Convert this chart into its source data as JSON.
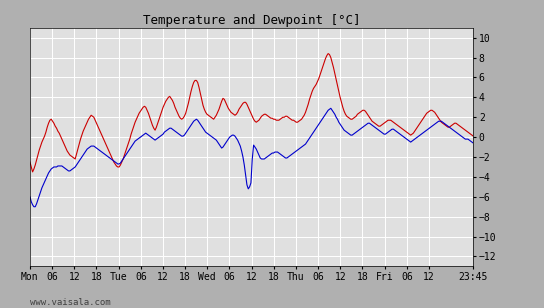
{
  "title": "Temperature and Dewpoint [°C]",
  "ylabel_right_ticks": [
    10,
    8,
    6,
    4,
    2,
    0,
    -2,
    -4,
    -6,
    -8,
    -10,
    -12
  ],
  "ylim": [
    -13,
    11
  ],
  "xlim": [
    0,
    340
  ],
  "x_tick_labels": [
    "Mon",
    "06",
    "12",
    "18",
    "Tue",
    "06",
    "12",
    "18",
    "Wed",
    "06",
    "12",
    "18",
    "Thu",
    "06",
    "12",
    "18",
    "Fri",
    "06",
    "12",
    "23:45"
  ],
  "x_tick_positions": [
    0,
    17,
    34,
    51,
    68,
    85,
    102,
    119,
    136,
    153,
    170,
    187,
    204,
    221,
    238,
    255,
    272,
    289,
    306,
    340
  ],
  "outer_bg_color": "#b0b0b0",
  "plot_bg_color": "#e0e0e0",
  "grid_color": "#ffffff",
  "temp_color": "#cc0000",
  "dewp_color": "#0000cc",
  "watermark": "www.vaisala.com",
  "watermark_color": "#404040",
  "line_width": 0.8,
  "temp_data": [
    -2.5,
    -3.0,
    -3.5,
    -3.2,
    -2.8,
    -2.3,
    -1.8,
    -1.3,
    -0.9,
    -0.5,
    -0.2,
    0.1,
    0.5,
    1.0,
    1.4,
    1.7,
    1.8,
    1.6,
    1.4,
    1.1,
    0.9,
    0.6,
    0.4,
    0.1,
    -0.2,
    -0.5,
    -0.8,
    -1.1,
    -1.4,
    -1.6,
    -1.8,
    -1.9,
    -2.0,
    -2.1,
    -2.2,
    -1.7,
    -1.2,
    -0.7,
    -0.2,
    0.2,
    0.6,
    0.9,
    1.2,
    1.5,
    1.8,
    2.0,
    2.2,
    2.1,
    2.0,
    1.7,
    1.4,
    1.1,
    0.8,
    0.5,
    0.2,
    -0.1,
    -0.4,
    -0.7,
    -1.0,
    -1.3,
    -1.6,
    -1.9,
    -2.2,
    -2.5,
    -2.7,
    -2.9,
    -3.0,
    -3.0,
    -2.8,
    -2.5,
    -2.2,
    -1.8,
    -1.4,
    -1.0,
    -0.6,
    -0.2,
    0.3,
    0.7,
    1.1,
    1.5,
    1.8,
    2.1,
    2.4,
    2.6,
    2.8,
    3.0,
    3.1,
    3.0,
    2.7,
    2.4,
    2.0,
    1.6,
    1.2,
    0.9,
    0.7,
    1.0,
    1.4,
    1.8,
    2.2,
    2.6,
    3.0,
    3.3,
    3.6,
    3.8,
    4.0,
    4.1,
    3.9,
    3.7,
    3.4,
    3.0,
    2.7,
    2.4,
    2.1,
    1.9,
    1.8,
    1.9,
    2.1,
    2.4,
    2.9,
    3.4,
    4.0,
    4.6,
    5.1,
    5.5,
    5.7,
    5.7,
    5.5,
    5.0,
    4.4,
    3.8,
    3.2,
    2.8,
    2.5,
    2.3,
    2.2,
    2.1,
    2.0,
    1.9,
    1.8,
    2.0,
    2.2,
    2.5,
    2.8,
    3.2,
    3.6,
    3.9,
    3.8,
    3.5,
    3.2,
    2.9,
    2.7,
    2.5,
    2.4,
    2.3,
    2.2,
    2.3,
    2.5,
    2.8,
    3.0,
    3.2,
    3.4,
    3.5,
    3.5,
    3.3,
    3.0,
    2.7,
    2.4,
    2.1,
    1.8,
    1.6,
    1.5,
    1.6,
    1.7,
    1.9,
    2.1,
    2.2,
    2.3,
    2.3,
    2.2,
    2.1,
    2.0,
    1.9,
    1.9,
    1.8,
    1.8,
    1.7,
    1.7,
    1.7,
    1.8,
    1.9,
    2.0,
    2.0,
    2.1,
    2.1,
    2.0,
    1.9,
    1.8,
    1.7,
    1.7,
    1.6,
    1.5,
    1.5,
    1.6,
    1.7,
    1.8,
    2.0,
    2.2,
    2.5,
    2.9,
    3.3,
    3.8,
    4.2,
    4.6,
    4.9,
    5.1,
    5.3,
    5.6,
    5.9,
    6.3,
    6.7,
    7.1,
    7.5,
    7.9,
    8.2,
    8.4,
    8.3,
    8.0,
    7.5,
    7.0,
    6.4,
    5.8,
    5.2,
    4.6,
    4.0,
    3.5,
    3.0,
    2.6,
    2.3,
    2.1,
    2.0,
    1.9,
    1.8,
    1.8,
    1.9,
    2.0,
    2.1,
    2.3,
    2.4,
    2.5,
    2.6,
    2.7,
    2.7,
    2.6,
    2.4,
    2.2,
    2.0,
    1.8,
    1.6,
    1.5,
    1.4,
    1.3,
    1.2,
    1.1,
    1.1,
    1.2,
    1.3,
    1.4,
    1.5,
    1.6,
    1.7,
    1.7,
    1.7,
    1.6,
    1.5,
    1.4,
    1.3,
    1.2,
    1.1,
    1.0,
    0.9,
    0.8,
    0.7,
    0.6,
    0.5,
    0.4,
    0.3,
    0.2,
    0.3,
    0.4,
    0.6,
    0.8,
    1.0,
    1.2,
    1.4,
    1.6,
    1.8,
    2.0,
    2.2,
    2.4,
    2.5,
    2.6,
    2.7,
    2.7,
    2.6,
    2.5,
    2.3,
    2.1,
    1.9,
    1.7,
    1.5,
    1.4,
    1.3,
    1.2,
    1.1,
    1.0,
    1.0,
    1.1,
    1.2,
    1.3,
    1.4,
    1.4,
    1.3,
    1.2,
    1.1,
    1.0,
    0.9,
    0.8,
    0.7,
    0.6,
    0.5,
    0.4,
    0.3,
    0.2,
    0.1
  ],
  "dewp_data": [
    -6.0,
    -6.5,
    -6.8,
    -7.0,
    -7.0,
    -6.7,
    -6.3,
    -5.9,
    -5.5,
    -5.1,
    -4.8,
    -4.5,
    -4.2,
    -3.9,
    -3.6,
    -3.4,
    -3.2,
    -3.1,
    -3.0,
    -3.0,
    -3.0,
    -2.9,
    -2.9,
    -2.9,
    -2.9,
    -3.0,
    -3.1,
    -3.2,
    -3.3,
    -3.4,
    -3.4,
    -3.3,
    -3.2,
    -3.1,
    -3.0,
    -2.8,
    -2.6,
    -2.4,
    -2.2,
    -2.0,
    -1.8,
    -1.6,
    -1.4,
    -1.2,
    -1.1,
    -1.0,
    -0.9,
    -0.9,
    -0.9,
    -1.0,
    -1.1,
    -1.2,
    -1.3,
    -1.4,
    -1.5,
    -1.6,
    -1.7,
    -1.8,
    -1.9,
    -2.0,
    -2.1,
    -2.2,
    -2.3,
    -2.4,
    -2.5,
    -2.6,
    -2.7,
    -2.7,
    -2.6,
    -2.4,
    -2.2,
    -2.0,
    -1.8,
    -1.6,
    -1.4,
    -1.2,
    -1.0,
    -0.8,
    -0.6,
    -0.4,
    -0.3,
    -0.2,
    -0.1,
    0.0,
    0.1,
    0.2,
    0.3,
    0.4,
    0.3,
    0.2,
    0.1,
    0.0,
    -0.1,
    -0.2,
    -0.3,
    -0.2,
    -0.1,
    0.0,
    0.1,
    0.2,
    0.3,
    0.5,
    0.6,
    0.7,
    0.8,
    0.9,
    0.9,
    0.8,
    0.7,
    0.6,
    0.5,
    0.4,
    0.3,
    0.2,
    0.1,
    0.1,
    0.2,
    0.4,
    0.6,
    0.8,
    1.0,
    1.2,
    1.4,
    1.6,
    1.7,
    1.8,
    1.7,
    1.5,
    1.3,
    1.1,
    0.9,
    0.7,
    0.5,
    0.4,
    0.3,
    0.2,
    0.1,
    0.0,
    -0.1,
    -0.2,
    -0.3,
    -0.5,
    -0.7,
    -0.9,
    -1.1,
    -1.0,
    -0.8,
    -0.6,
    -0.4,
    -0.2,
    0.0,
    0.1,
    0.2,
    0.2,
    0.1,
    -0.1,
    -0.3,
    -0.6,
    -0.9,
    -1.4,
    -2.0,
    -2.8,
    -3.8,
    -4.8,
    -5.2,
    -5.0,
    -4.6,
    -2.2,
    -0.8,
    -1.0,
    -1.2,
    -1.5,
    -1.8,
    -2.1,
    -2.2,
    -2.2,
    -2.2,
    -2.1,
    -2.0,
    -1.9,
    -1.8,
    -1.7,
    -1.6,
    -1.6,
    -1.5,
    -1.5,
    -1.5,
    -1.6,
    -1.7,
    -1.8,
    -1.9,
    -2.0,
    -2.1,
    -2.1,
    -2.0,
    -1.9,
    -1.8,
    -1.7,
    -1.6,
    -1.5,
    -1.4,
    -1.3,
    -1.2,
    -1.1,
    -1.0,
    -0.9,
    -0.8,
    -0.7,
    -0.5,
    -0.3,
    -0.1,
    0.1,
    0.3,
    0.5,
    0.7,
    0.9,
    1.1,
    1.3,
    1.5,
    1.7,
    1.9,
    2.1,
    2.3,
    2.5,
    2.7,
    2.8,
    2.9,
    2.7,
    2.5,
    2.3,
    2.0,
    1.8,
    1.5,
    1.3,
    1.1,
    0.9,
    0.7,
    0.6,
    0.5,
    0.4,
    0.3,
    0.2,
    0.2,
    0.3,
    0.4,
    0.5,
    0.6,
    0.7,
    0.8,
    0.9,
    1.0,
    1.1,
    1.2,
    1.3,
    1.4,
    1.4,
    1.3,
    1.2,
    1.1,
    1.0,
    0.9,
    0.8,
    0.7,
    0.6,
    0.5,
    0.4,
    0.3,
    0.3,
    0.4,
    0.5,
    0.6,
    0.7,
    0.8,
    0.8,
    0.7,
    0.6,
    0.5,
    0.4,
    0.3,
    0.2,
    0.1,
    0.0,
    -0.1,
    -0.2,
    -0.3,
    -0.4,
    -0.5,
    -0.4,
    -0.3,
    -0.2,
    -0.1,
    0.0,
    0.1,
    0.2,
    0.3,
    0.4,
    0.5,
    0.6,
    0.7,
    0.8,
    0.9,
    1.0,
    1.1,
    1.2,
    1.3,
    1.4,
    1.5,
    1.6,
    1.6,
    1.6,
    1.5,
    1.4,
    1.3,
    1.2,
    1.1,
    1.0,
    0.9,
    0.8,
    0.7,
    0.6,
    0.5,
    0.4,
    0.3,
    0.2,
    0.1,
    0.0,
    -0.1,
    -0.2,
    -0.2,
    -0.2,
    -0.3,
    -0.4,
    -0.5,
    -0.6
  ]
}
